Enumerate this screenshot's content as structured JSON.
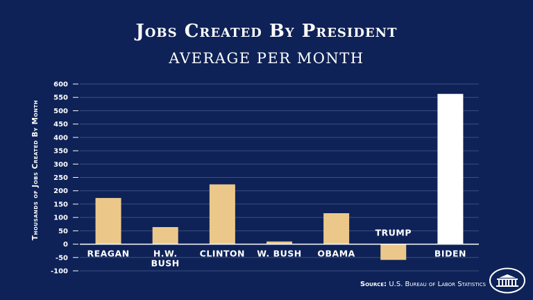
{
  "chart_data": {
    "type": "bar",
    "title": "Jobs Created By President",
    "subtitle": "AVERAGE PER MONTH",
    "xlabel": "",
    "ylabel": "Thousands of Jobs Created By Month",
    "categories": [
      "REAGAN",
      "H.W. BUSH",
      "CLINTON",
      "W. BUSH",
      "OBAMA",
      "TRUMP",
      "BIDEN"
    ],
    "category_lines": [
      [
        "REAGAN"
      ],
      [
        "H.W.",
        "BUSH"
      ],
      [
        "CLINTON"
      ],
      [
        "W. BUSH"
      ],
      [
        "OBAMA"
      ],
      [
        "TRUMP"
      ],
      [
        "BIDEN"
      ]
    ],
    "values": [
      173,
      64,
      224,
      10,
      116,
      -59,
      563
    ],
    "ylim": [
      -100,
      600
    ],
    "yticks": [
      -100,
      -50,
      0,
      50,
      100,
      150,
      200,
      250,
      300,
      350,
      400,
      450,
      500,
      550,
      600
    ],
    "grid": true,
    "colors": {
      "default": "#ebc88a",
      "highlight": "#ffffff",
      "background": "#0e2257",
      "grid": "#3b4f82"
    },
    "highlight_index": 6
  },
  "source": {
    "label": "Source:",
    "text": "U.S. Bureau of Labor Statistics"
  }
}
